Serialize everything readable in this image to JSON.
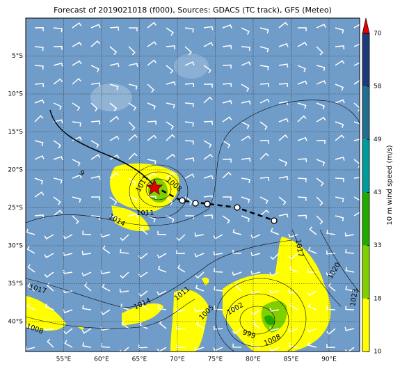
{
  "title": "Forecast of 2019021018 (f000), Sources: GDACS (TC track), GFS (Meteo)",
  "map": {
    "lon_labels": [
      "55°E",
      "60°E",
      "65°E",
      "70°E",
      "75°E",
      "80°E",
      "85°E",
      "90°E"
    ],
    "lat_labels": [
      "5°S",
      "10°S",
      "15°S",
      "20°S",
      "25°S",
      "30°S",
      "35°S",
      "40°S"
    ],
    "contour_labels": [
      "1008",
      "1011",
      "1014",
      "1017",
      "1008",
      "1014",
      "1011",
      "1005",
      "1002",
      "999",
      "1008",
      "1017",
      "1020",
      "1023",
      "1011",
      "9"
    ]
  },
  "colorbar": {
    "label": "10 m wind speed (m/s)",
    "ticks": [
      10,
      18,
      33,
      43,
      49,
      58,
      70
    ],
    "colors": [
      "#ffff00",
      "#80d000",
      "#20aa00",
      "#009a9a",
      "#1f6e8e",
      "#1c3a78"
    ],
    "extend_color": "#e00000"
  }
}
